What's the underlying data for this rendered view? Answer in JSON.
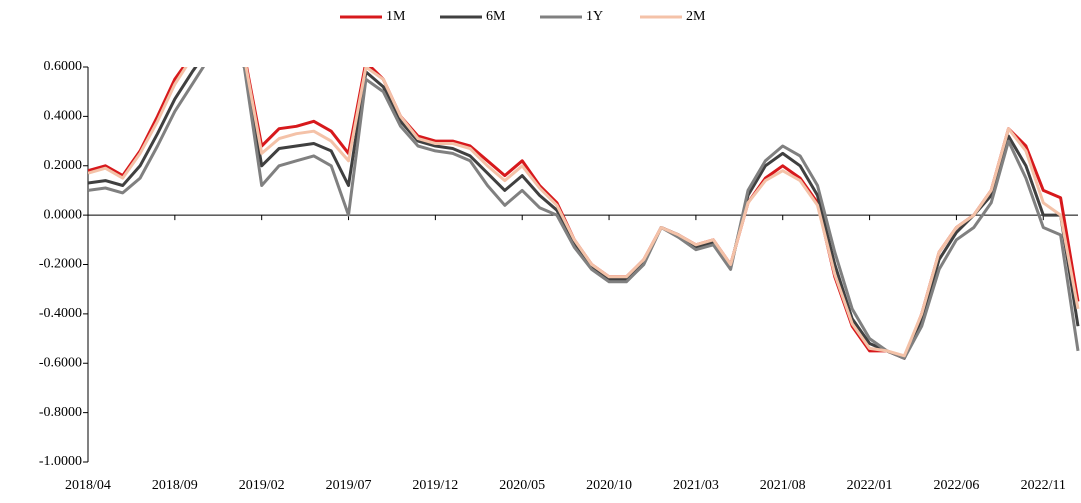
{
  "chart_data": {
    "type": "line",
    "categories": [
      "2018/04",
      null,
      null,
      null,
      null,
      "2018/09",
      null,
      null,
      null,
      null,
      "2019/02",
      null,
      null,
      null,
      null,
      "2019/07",
      null,
      null,
      null,
      null,
      "2019/12",
      null,
      null,
      null,
      null,
      "2020/05",
      null,
      null,
      null,
      null,
      "2020/10",
      null,
      null,
      null,
      null,
      "2021/03",
      null,
      null,
      null,
      null,
      "2021/08",
      null,
      null,
      null,
      null,
      "2022/01",
      null,
      null,
      null,
      null,
      "2022/06",
      null,
      null,
      null,
      null,
      "2022/11",
      null,
      null
    ],
    "series": [
      {
        "name": "1M",
        "color": "#d7191c",
        "values": [
          0.18,
          0.2,
          0.16,
          0.26,
          0.4,
          0.55,
          0.65,
          0.7,
          0.7,
          0.65,
          0.28,
          0.35,
          0.36,
          0.38,
          0.34,
          0.25,
          0.62,
          0.55,
          0.4,
          0.32,
          0.3,
          0.3,
          0.28,
          0.22,
          0.16,
          0.22,
          0.12,
          0.05,
          -0.1,
          -0.2,
          -0.25,
          -0.25,
          -0.18,
          -0.05,
          -0.08,
          -0.12,
          -0.1,
          -0.2,
          0.05,
          0.15,
          0.2,
          0.15,
          0.05,
          -0.25,
          -0.45,
          -0.55,
          -0.55,
          -0.58,
          -0.4,
          -0.15,
          -0.05,
          0.0,
          0.1,
          0.35,
          0.28,
          0.1,
          0.07,
          -0.35
        ]
      },
      {
        "name": "6M",
        "color": "#404040",
        "values": [
          0.13,
          0.14,
          0.12,
          0.2,
          0.33,
          0.47,
          0.58,
          0.68,
          0.68,
          0.62,
          0.2,
          0.27,
          0.28,
          0.29,
          0.26,
          0.12,
          0.58,
          0.52,
          0.38,
          0.3,
          0.28,
          0.27,
          0.24,
          0.17,
          0.1,
          0.16,
          0.08,
          0.02,
          -0.12,
          -0.21,
          -0.26,
          -0.26,
          -0.19,
          -0.05,
          -0.08,
          -0.13,
          -0.11,
          -0.21,
          0.08,
          0.2,
          0.25,
          0.2,
          0.08,
          -0.2,
          -0.42,
          -0.52,
          -0.55,
          -0.58,
          -0.42,
          -0.18,
          -0.07,
          0.0,
          0.08,
          0.32,
          0.2,
          0.0,
          0.0,
          -0.45
        ]
      },
      {
        "name": "1Y",
        "color": "#808080",
        "values": [
          0.1,
          0.11,
          0.09,
          0.15,
          0.28,
          0.42,
          0.53,
          0.64,
          0.66,
          0.6,
          0.12,
          0.2,
          0.22,
          0.24,
          0.2,
          0.0,
          0.55,
          0.5,
          0.36,
          0.28,
          0.26,
          0.25,
          0.22,
          0.12,
          0.04,
          0.1,
          0.03,
          0.0,
          -0.13,
          -0.22,
          -0.27,
          -0.27,
          -0.2,
          -0.05,
          -0.09,
          -0.14,
          -0.12,
          -0.22,
          0.1,
          0.22,
          0.28,
          0.24,
          0.12,
          -0.15,
          -0.38,
          -0.5,
          -0.55,
          -0.58,
          -0.45,
          -0.22,
          -0.1,
          -0.05,
          0.05,
          0.3,
          0.15,
          -0.05,
          -0.08,
          -0.55
        ]
      },
      {
        "name": "2M",
        "color": "#f4c2a8",
        "values": [
          0.17,
          0.19,
          0.15,
          0.25,
          0.38,
          0.53,
          0.64,
          0.7,
          0.7,
          0.64,
          0.25,
          0.31,
          0.33,
          0.34,
          0.3,
          0.22,
          0.6,
          0.55,
          0.4,
          0.31,
          0.29,
          0.29,
          0.27,
          0.2,
          0.14,
          0.2,
          0.11,
          0.04,
          -0.1,
          -0.2,
          -0.25,
          -0.25,
          -0.18,
          -0.05,
          -0.08,
          -0.12,
          -0.1,
          -0.2,
          0.05,
          0.14,
          0.18,
          0.14,
          0.04,
          -0.24,
          -0.44,
          -0.54,
          -0.55,
          -0.57,
          -0.4,
          -0.15,
          -0.05,
          0.0,
          0.1,
          0.35,
          0.26,
          0.05,
          0.0,
          -0.38
        ]
      }
    ],
    "ylim": [
      -1,
      0.6
    ],
    "yticks": [
      {
        "value": -1,
        "label": "-1.0000"
      },
      {
        "value": -0.8,
        "label": "-0.8000"
      },
      {
        "value": -0.6,
        "label": "-0.6000"
      },
      {
        "value": -0.4,
        "label": "-0.4000"
      },
      {
        "value": -0.2,
        "label": "-0.2000"
      },
      {
        "value": 0,
        "label": "0.0000"
      },
      {
        "value": 0.2,
        "label": "0.2000"
      },
      {
        "value": 0.4,
        "label": "0.4000"
      },
      {
        "value": 0.6,
        "label": "0.6000"
      }
    ],
    "legend": "top"
  }
}
